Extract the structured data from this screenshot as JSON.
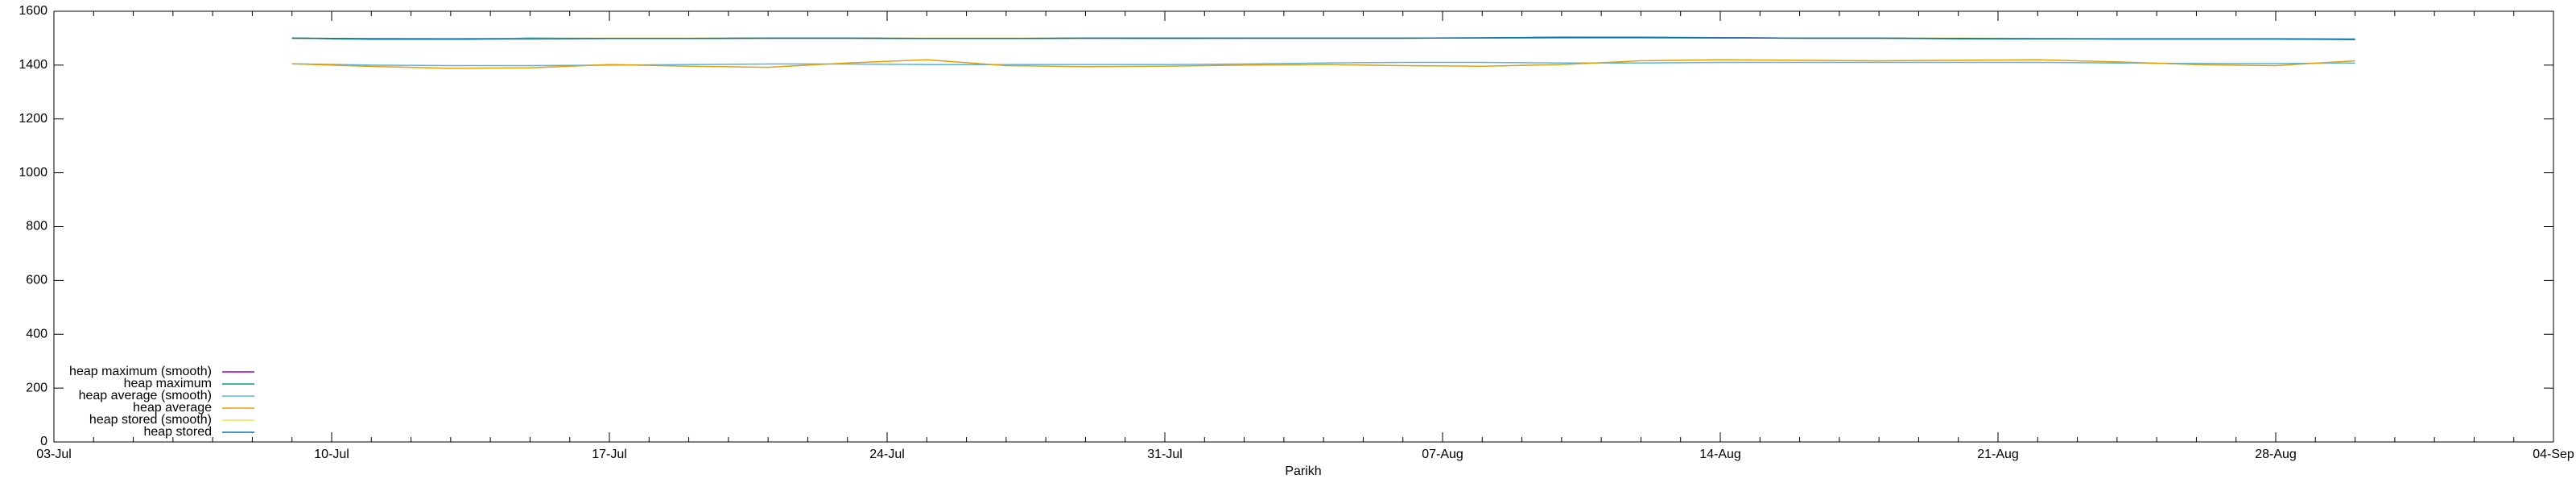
{
  "chart_data": {
    "type": "line",
    "xlabel": "Parikh",
    "x": [
      "09-Jul",
      "11-Jul",
      "13-Jul",
      "15-Jul",
      "17-Jul",
      "19-Jul",
      "21-Jul",
      "23-Jul",
      "25-Jul",
      "27-Jul",
      "29-Jul",
      "31-Jul",
      "02-Aug",
      "04-Aug",
      "06-Aug",
      "08-Aug",
      "10-Aug",
      "12-Aug",
      "14-Aug",
      "16-Aug",
      "18-Aug",
      "20-Aug",
      "22-Aug",
      "24-Aug",
      "26-Aug",
      "28-Aug",
      "30-Aug"
    ],
    "series": [
      {
        "name": "heap maximum (smooth)",
        "color": "#9400d3",
        "values": [
          1500,
          1497,
          1496,
          1498,
          1499,
          1499,
          1500,
          1500,
          1499,
          1499,
          1500,
          1500,
          1500,
          1500,
          1500,
          1501,
          1503,
          1503,
          1502,
          1500,
          1500,
          1499,
          1498,
          1497,
          1497,
          1497,
          1496
        ]
      },
      {
        "name": "heap maximum",
        "color": "#009e73",
        "values": [
          1500,
          1496,
          1496,
          1500,
          1499,
          1499,
          1500,
          1500,
          1499,
          1499,
          1500,
          1499,
          1500,
          1500,
          1500,
          1501,
          1504,
          1503,
          1501,
          1500,
          1500,
          1498,
          1498,
          1497,
          1497,
          1497,
          1495
        ]
      },
      {
        "name": "heap average (smooth)",
        "color": "#56b4e9",
        "values": [
          1405,
          1400,
          1398,
          1398,
          1400,
          1402,
          1404,
          1404,
          1402,
          1402,
          1402,
          1402,
          1404,
          1408,
          1410,
          1410,
          1408,
          1408,
          1410,
          1410,
          1410,
          1410,
          1410,
          1408,
          1406,
          1406,
          1408
        ]
      },
      {
        "name": "heap average",
        "color": "#e69f00",
        "values": [
          1405,
          1395,
          1388,
          1390,
          1402,
          1396,
          1392,
          1408,
          1420,
          1398,
          1394,
          1396,
          1400,
          1402,
          1398,
          1396,
          1402,
          1416,
          1420,
          1418,
          1416,
          1418,
          1420,
          1412,
          1402,
          1398,
          1416
        ]
      },
      {
        "name": "heap stored (smooth)",
        "color": "#f0e442",
        "values": [
          1500,
          1499,
          1499,
          1499,
          1500,
          1500,
          1500,
          1500,
          1500,
          1500,
          1500,
          1500,
          1500,
          1500,
          1500,
          1500,
          1501,
          1501,
          1501,
          1500,
          1500,
          1500,
          1499,
          1499,
          1499,
          1499,
          1499
        ]
      },
      {
        "name": "heap stored",
        "color": "#0072b2",
        "values": [
          1500,
          1498,
          1497,
          1498,
          1499,
          1499,
          1500,
          1500,
          1499,
          1499,
          1500,
          1500,
          1500,
          1500,
          1500,
          1501,
          1502,
          1502,
          1501,
          1500,
          1500,
          1499,
          1498,
          1497,
          1497,
          1497,
          1496
        ]
      }
    ],
    "xlim": [
      "03-Jul",
      "04-Sep"
    ],
    "xticks": [
      "03-Jul",
      "10-Jul",
      "17-Jul",
      "24-Jul",
      "31-Jul",
      "07-Aug",
      "14-Aug",
      "21-Aug",
      "28-Aug",
      "04-Sep"
    ],
    "ylim": [
      0,
      1600
    ],
    "yticks": [
      0,
      200,
      400,
      600,
      800,
      1000,
      1200,
      1400,
      1600
    ],
    "legend": "lower left"
  }
}
